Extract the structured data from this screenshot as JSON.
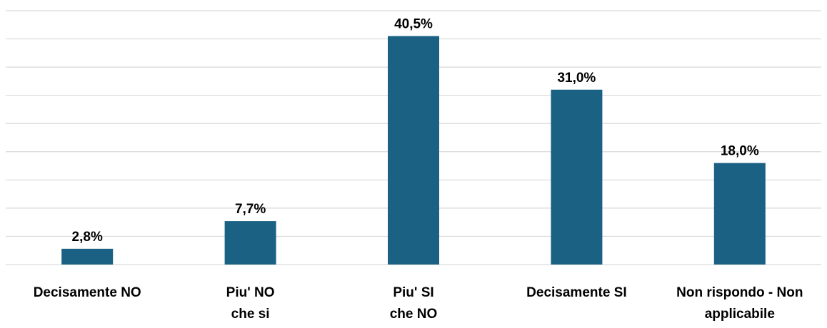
{
  "chart_data": {
    "type": "bar",
    "categories": [
      [
        "Decisamente NO"
      ],
      [
        "Piu' NO",
        "che si"
      ],
      [
        "Piu' SI",
        "che NO"
      ],
      [
        "Decisamente SI"
      ],
      [
        "Non rispondo - Non",
        "applicabile"
      ]
    ],
    "values": [
      2.8,
      7.7,
      40.5,
      31.0,
      18.0
    ],
    "value_labels": [
      "2,8%",
      "7,7%",
      "40,5%",
      "31,0%",
      "18,0%"
    ],
    "ylim": [
      0,
      45
    ],
    "grid": true,
    "bar_color": "#1a6183",
    "grid_color": "#d9d9d9"
  }
}
